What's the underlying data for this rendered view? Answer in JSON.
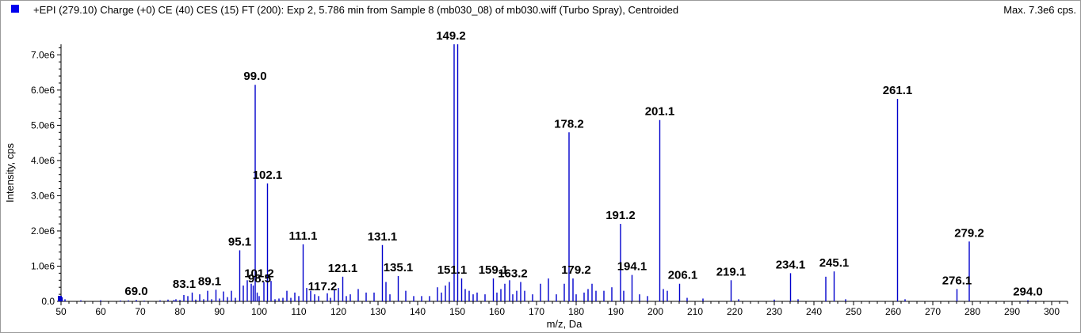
{
  "header": {
    "title": "+EPI (279.10) Charge (+0) CE (40) CES (15) FT (200): Exp 2, 5.786 min from Sample 8 (mb030_08) of mb030.wiff (Turbo Spray), Centroided",
    "max_label": "Max. 7.3e6 cps."
  },
  "colors": {
    "spectrum": "#0000cc",
    "axis": "#000000",
    "swatch": "#0000ee",
    "leader": "#000000"
  },
  "chart_data": {
    "type": "bar",
    "xlabel": "m/z, Da",
    "ylabel": "Intensity, cps",
    "xlim": [
      50,
      304
    ],
    "ylim": [
      0,
      7300000.0
    ],
    "x_ticks": [
      50,
      60,
      70,
      80,
      90,
      100,
      110,
      120,
      130,
      140,
      150,
      160,
      170,
      180,
      190,
      200,
      210,
      220,
      230,
      240,
      250,
      260,
      270,
      280,
      290,
      300
    ],
    "y_ticks": [
      {
        "value": 0,
        "label": "0.0"
      },
      {
        "value": 1000000,
        "label": "1.0e6"
      },
      {
        "value": 2000000,
        "label": "2.0e6"
      },
      {
        "value": 3000000,
        "label": "3.0e6"
      },
      {
        "value": 4000000,
        "label": "4.0e6"
      },
      {
        "value": 5000000,
        "label": "5.0e6"
      },
      {
        "value": 6000000,
        "label": "6.0e6"
      },
      {
        "value": 7000000,
        "label": "7.0e6"
      }
    ],
    "peaks": [
      {
        "mz": 50.3,
        "i": 120000
      },
      {
        "mz": 51.0,
        "i": 60000
      },
      {
        "mz": 55.0,
        "i": 30000
      },
      {
        "mz": 60.0,
        "i": 30000
      },
      {
        "mz": 65.0,
        "i": 25000
      },
      {
        "mz": 67.0,
        "i": 30000
      },
      {
        "mz": 69.0,
        "i": 40000
      },
      {
        "mz": 71.0,
        "i": 20000
      },
      {
        "mz": 75.0,
        "i": 30000
      },
      {
        "mz": 77.0,
        "i": 50000
      },
      {
        "mz": 78.5,
        "i": 40000
      },
      {
        "mz": 79.0,
        "i": 60000
      },
      {
        "mz": 80.0,
        "i": 40000
      },
      {
        "mz": 81.0,
        "i": 180000
      },
      {
        "mz": 82.0,
        "i": 150000
      },
      {
        "mz": 83.1,
        "i": 250000
      },
      {
        "mz": 84.0,
        "i": 50000
      },
      {
        "mz": 85.0,
        "i": 200000
      },
      {
        "mz": 86.0,
        "i": 60000
      },
      {
        "mz": 87.0,
        "i": 300000
      },
      {
        "mz": 88.0,
        "i": 60000
      },
      {
        "mz": 89.1,
        "i": 330000
      },
      {
        "mz": 90.0,
        "i": 80000
      },
      {
        "mz": 91.0,
        "i": 280000
      },
      {
        "mz": 92.0,
        "i": 120000
      },
      {
        "mz": 93.0,
        "i": 300000
      },
      {
        "mz": 94.0,
        "i": 100000
      },
      {
        "mz": 95.1,
        "i": 1450000
      },
      {
        "mz": 96.0,
        "i": 450000
      },
      {
        "mz": 97.0,
        "i": 600000
      },
      {
        "mz": 98.0,
        "i": 500000
      },
      {
        "mz": 98.5,
        "i": 450000
      },
      {
        "mz": 99.0,
        "i": 6150000
      },
      {
        "mz": 99.5,
        "i": 250000
      },
      {
        "mz": 100.0,
        "i": 150000
      },
      {
        "mz": 101.2,
        "i": 550000
      },
      {
        "mz": 102.1,
        "i": 3350000
      },
      {
        "mz": 103.0,
        "i": 580000
      },
      {
        "mz": 104.0,
        "i": 60000
      },
      {
        "mz": 105.0,
        "i": 80000
      },
      {
        "mz": 106.0,
        "i": 100000
      },
      {
        "mz": 107.0,
        "i": 300000
      },
      {
        "mz": 108.0,
        "i": 100000
      },
      {
        "mz": 109.0,
        "i": 250000
      },
      {
        "mz": 110.0,
        "i": 150000
      },
      {
        "mz": 111.1,
        "i": 1620000
      },
      {
        "mz": 112.0,
        "i": 380000
      },
      {
        "mz": 113.0,
        "i": 300000
      },
      {
        "mz": 114.0,
        "i": 200000
      },
      {
        "mz": 115.0,
        "i": 150000
      },
      {
        "mz": 117.2,
        "i": 230000
      },
      {
        "mz": 118.0,
        "i": 100000
      },
      {
        "mz": 119.0,
        "i": 350000
      },
      {
        "mz": 120.0,
        "i": 380000
      },
      {
        "mz": 121.1,
        "i": 700000
      },
      {
        "mz": 122.0,
        "i": 150000
      },
      {
        "mz": 123.0,
        "i": 200000
      },
      {
        "mz": 125.0,
        "i": 350000
      },
      {
        "mz": 127.0,
        "i": 250000
      },
      {
        "mz": 129.0,
        "i": 250000
      },
      {
        "mz": 131.1,
        "i": 1600000
      },
      {
        "mz": 132.0,
        "i": 550000
      },
      {
        "mz": 133.0,
        "i": 200000
      },
      {
        "mz": 135.1,
        "i": 720000
      },
      {
        "mz": 137.0,
        "i": 300000
      },
      {
        "mz": 139.0,
        "i": 150000
      },
      {
        "mz": 141.0,
        "i": 150000
      },
      {
        "mz": 143.0,
        "i": 150000
      },
      {
        "mz": 145.0,
        "i": 400000
      },
      {
        "mz": 146.0,
        "i": 250000
      },
      {
        "mz": 147.0,
        "i": 450000
      },
      {
        "mz": 148.0,
        "i": 550000
      },
      {
        "mz": 149.2,
        "i": 7300000
      },
      {
        "mz": 150.1,
        "i": 7300000
      },
      {
        "mz": 151.1,
        "i": 650000
      },
      {
        "mz": 152.0,
        "i": 350000
      },
      {
        "mz": 153.0,
        "i": 300000
      },
      {
        "mz": 154.0,
        "i": 200000
      },
      {
        "mz": 155.0,
        "i": 250000
      },
      {
        "mz": 157.0,
        "i": 200000
      },
      {
        "mz": 159.1,
        "i": 650000
      },
      {
        "mz": 160.0,
        "i": 250000
      },
      {
        "mz": 161.0,
        "i": 350000
      },
      {
        "mz": 162.0,
        "i": 500000
      },
      {
        "mz": 163.2,
        "i": 600000
      },
      {
        "mz": 164.0,
        "i": 200000
      },
      {
        "mz": 165.0,
        "i": 300000
      },
      {
        "mz": 166.0,
        "i": 550000
      },
      {
        "mz": 167.0,
        "i": 300000
      },
      {
        "mz": 169.0,
        "i": 200000
      },
      {
        "mz": 171.0,
        "i": 500000
      },
      {
        "mz": 173.0,
        "i": 650000
      },
      {
        "mz": 175.0,
        "i": 200000
      },
      {
        "mz": 177.0,
        "i": 500000
      },
      {
        "mz": 178.2,
        "i": 4800000
      },
      {
        "mz": 179.2,
        "i": 650000
      },
      {
        "mz": 180.0,
        "i": 200000
      },
      {
        "mz": 182.0,
        "i": 250000
      },
      {
        "mz": 183.0,
        "i": 350000
      },
      {
        "mz": 184.0,
        "i": 500000
      },
      {
        "mz": 185.0,
        "i": 300000
      },
      {
        "mz": 187.0,
        "i": 300000
      },
      {
        "mz": 189.0,
        "i": 400000
      },
      {
        "mz": 191.2,
        "i": 2200000
      },
      {
        "mz": 192.0,
        "i": 300000
      },
      {
        "mz": 194.1,
        "i": 750000
      },
      {
        "mz": 196.0,
        "i": 200000
      },
      {
        "mz": 198.0,
        "i": 150000
      },
      {
        "mz": 201.1,
        "i": 5150000
      },
      {
        "mz": 202.0,
        "i": 350000
      },
      {
        "mz": 203.0,
        "i": 300000
      },
      {
        "mz": 206.1,
        "i": 500000
      },
      {
        "mz": 208.0,
        "i": 100000
      },
      {
        "mz": 212.0,
        "i": 80000
      },
      {
        "mz": 219.1,
        "i": 600000
      },
      {
        "mz": 221.0,
        "i": 60000
      },
      {
        "mz": 230.0,
        "i": 50000
      },
      {
        "mz": 234.1,
        "i": 800000
      },
      {
        "mz": 236.0,
        "i": 60000
      },
      {
        "mz": 243.0,
        "i": 700000
      },
      {
        "mz": 245.1,
        "i": 850000
      },
      {
        "mz": 248.0,
        "i": 60000
      },
      {
        "mz": 261.1,
        "i": 5750000
      },
      {
        "mz": 263.0,
        "i": 60000
      },
      {
        "mz": 276.1,
        "i": 350000
      },
      {
        "mz": 279.2,
        "i": 1700000
      },
      {
        "mz": 294.0,
        "i": 30000
      }
    ],
    "labels": [
      {
        "text": "69.0",
        "mz": 69.0,
        "i": 40000
      },
      {
        "text": "83.1",
        "mz": 83.1,
        "i": 250000
      },
      {
        "text": "89.1",
        "mz": 89.1,
        "i": 330000
      },
      {
        "text": "95.1",
        "mz": 95.1,
        "i": 1450000
      },
      {
        "text": "99.0",
        "mz": 99.0,
        "i": 6150000
      },
      {
        "text": "101.2",
        "mz": 101.2,
        "i": 550000
      },
      {
        "text": "98.5",
        "mz": 98.5,
        "i": 450000
      },
      {
        "text": "102.1",
        "mz": 102.1,
        "i": 3350000
      },
      {
        "text": "111.1",
        "mz": 111.1,
        "i": 1620000
      },
      {
        "text": "117.2",
        "mz": 117.2,
        "i": 230000
      },
      {
        "text": "121.1",
        "mz": 121.1,
        "i": 700000
      },
      {
        "text": "131.1",
        "mz": 131.1,
        "i": 1600000
      },
      {
        "text": "135.1",
        "mz": 135.1,
        "i": 720000
      },
      {
        "text": "149.2",
        "mz": 149.2,
        "i": 7300000
      },
      {
        "text": "151.1",
        "mz": 151.1,
        "i": 650000
      },
      {
        "text": "159.1",
        "mz": 159.1,
        "i": 650000
      },
      {
        "text": "163.2",
        "mz": 163.2,
        "i": 600000
      },
      {
        "text": "178.2",
        "mz": 178.2,
        "i": 4800000
      },
      {
        "text": "179.2",
        "mz": 179.2,
        "i": 650000
      },
      {
        "text": "191.2",
        "mz": 191.2,
        "i": 2200000
      },
      {
        "text": "194.1",
        "mz": 194.1,
        "i": 750000
      },
      {
        "text": "201.1",
        "mz": 201.1,
        "i": 5150000
      },
      {
        "text": "206.1",
        "mz": 206.1,
        "i": 500000
      },
      {
        "text": "219.1",
        "mz": 219.1,
        "i": 600000
      },
      {
        "text": "234.1",
        "mz": 234.1,
        "i": 800000
      },
      {
        "text": "245.1",
        "mz": 245.1,
        "i": 850000
      },
      {
        "text": "261.1",
        "mz": 261.1,
        "i": 5750000
      },
      {
        "text": "276.1",
        "mz": 276.1,
        "i": 350000
      },
      {
        "text": "279.2",
        "mz": 279.2,
        "i": 1700000
      },
      {
        "text": "294.0",
        "mz": 294.0,
        "i": 30000
      }
    ]
  }
}
